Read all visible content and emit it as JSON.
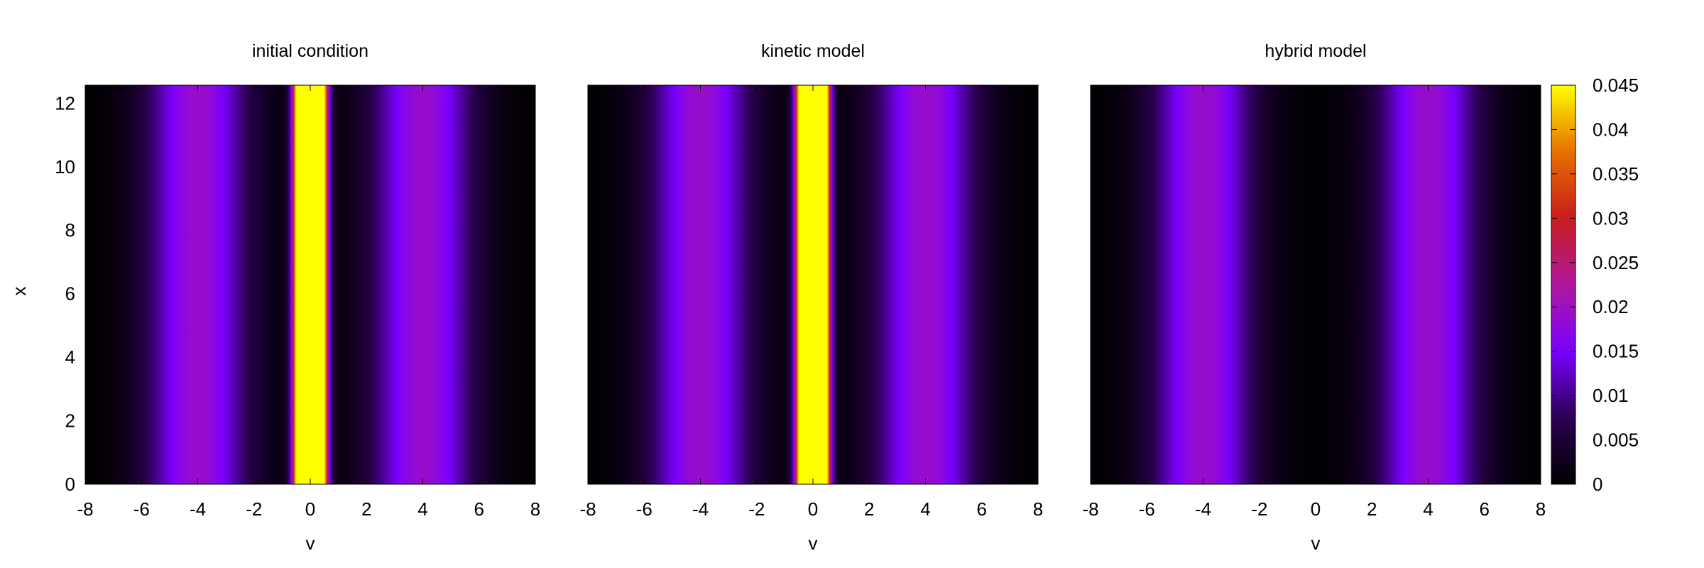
{
  "chart_data": [
    {
      "type": "heatmap",
      "title": "initial condition",
      "xlabel": "v",
      "ylabel": "x",
      "xlim": [
        -8,
        8
      ],
      "ylim": [
        0,
        12.566
      ],
      "xticks": [
        "-8",
        "-6",
        "-4",
        "-2",
        "0",
        "2",
        "4",
        "6",
        "8"
      ],
      "yticks": [
        "0",
        "2",
        "4",
        "6",
        "8",
        "10",
        "12"
      ],
      "bands": [
        {
          "center": -4.0,
          "width": 1.3,
          "peak": 0.019
        },
        {
          "center": 4.0,
          "width": 1.3,
          "peak": 0.019
        },
        {
          "center": 0.0,
          "width": 0.3,
          "peak": 0.2
        }
      ]
    },
    {
      "type": "heatmap",
      "title": "kinetic model",
      "xlabel": "v",
      "ylabel": "",
      "xlim": [
        -8,
        8
      ],
      "ylim": [
        0,
        12.566
      ],
      "xticks": [
        "-8",
        "-6",
        "-4",
        "-2",
        "0",
        "2",
        "4",
        "6",
        "8"
      ],
      "yticks": [],
      "bands": [
        {
          "center": -4.0,
          "width": 1.3,
          "peak": 0.019
        },
        {
          "center": 4.0,
          "width": 1.3,
          "peak": 0.019
        },
        {
          "center": 0.0,
          "width": 0.3,
          "peak": 0.2
        }
      ]
    },
    {
      "type": "heatmap",
      "title": "hybrid model",
      "xlabel": "v",
      "ylabel": "",
      "xlim": [
        -8,
        8
      ],
      "ylim": [
        0,
        12.566
      ],
      "xticks": [
        "-8",
        "-6",
        "-4",
        "-2",
        "0",
        "2",
        "4",
        "6",
        "8"
      ],
      "yticks": [],
      "bands": [
        {
          "center": -4.0,
          "width": 1.3,
          "peak": 0.019
        },
        {
          "center": 4.0,
          "width": 1.3,
          "peak": 0.019
        }
      ]
    }
  ],
  "colorbar": {
    "range": [
      0,
      0.045
    ],
    "ticks": [
      {
        "value": 0,
        "label": "0"
      },
      {
        "value": 0.005,
        "label": "0.005"
      },
      {
        "value": 0.01,
        "label": "0.01"
      },
      {
        "value": 0.015,
        "label": "0.015"
      },
      {
        "value": 0.02,
        "label": "0.02"
      },
      {
        "value": 0.025,
        "label": "0.025"
      },
      {
        "value": 0.03,
        "label": "0.03"
      },
      {
        "value": 0.035,
        "label": "0.035"
      },
      {
        "value": 0.04,
        "label": "0.04"
      },
      {
        "value": 0.045,
        "label": "0.045"
      }
    ],
    "palette": [
      "#000000",
      "#2a0050",
      "#7a00ff",
      "#b0189e",
      "#c81c1c",
      "#e87000",
      "#ffff00"
    ]
  }
}
